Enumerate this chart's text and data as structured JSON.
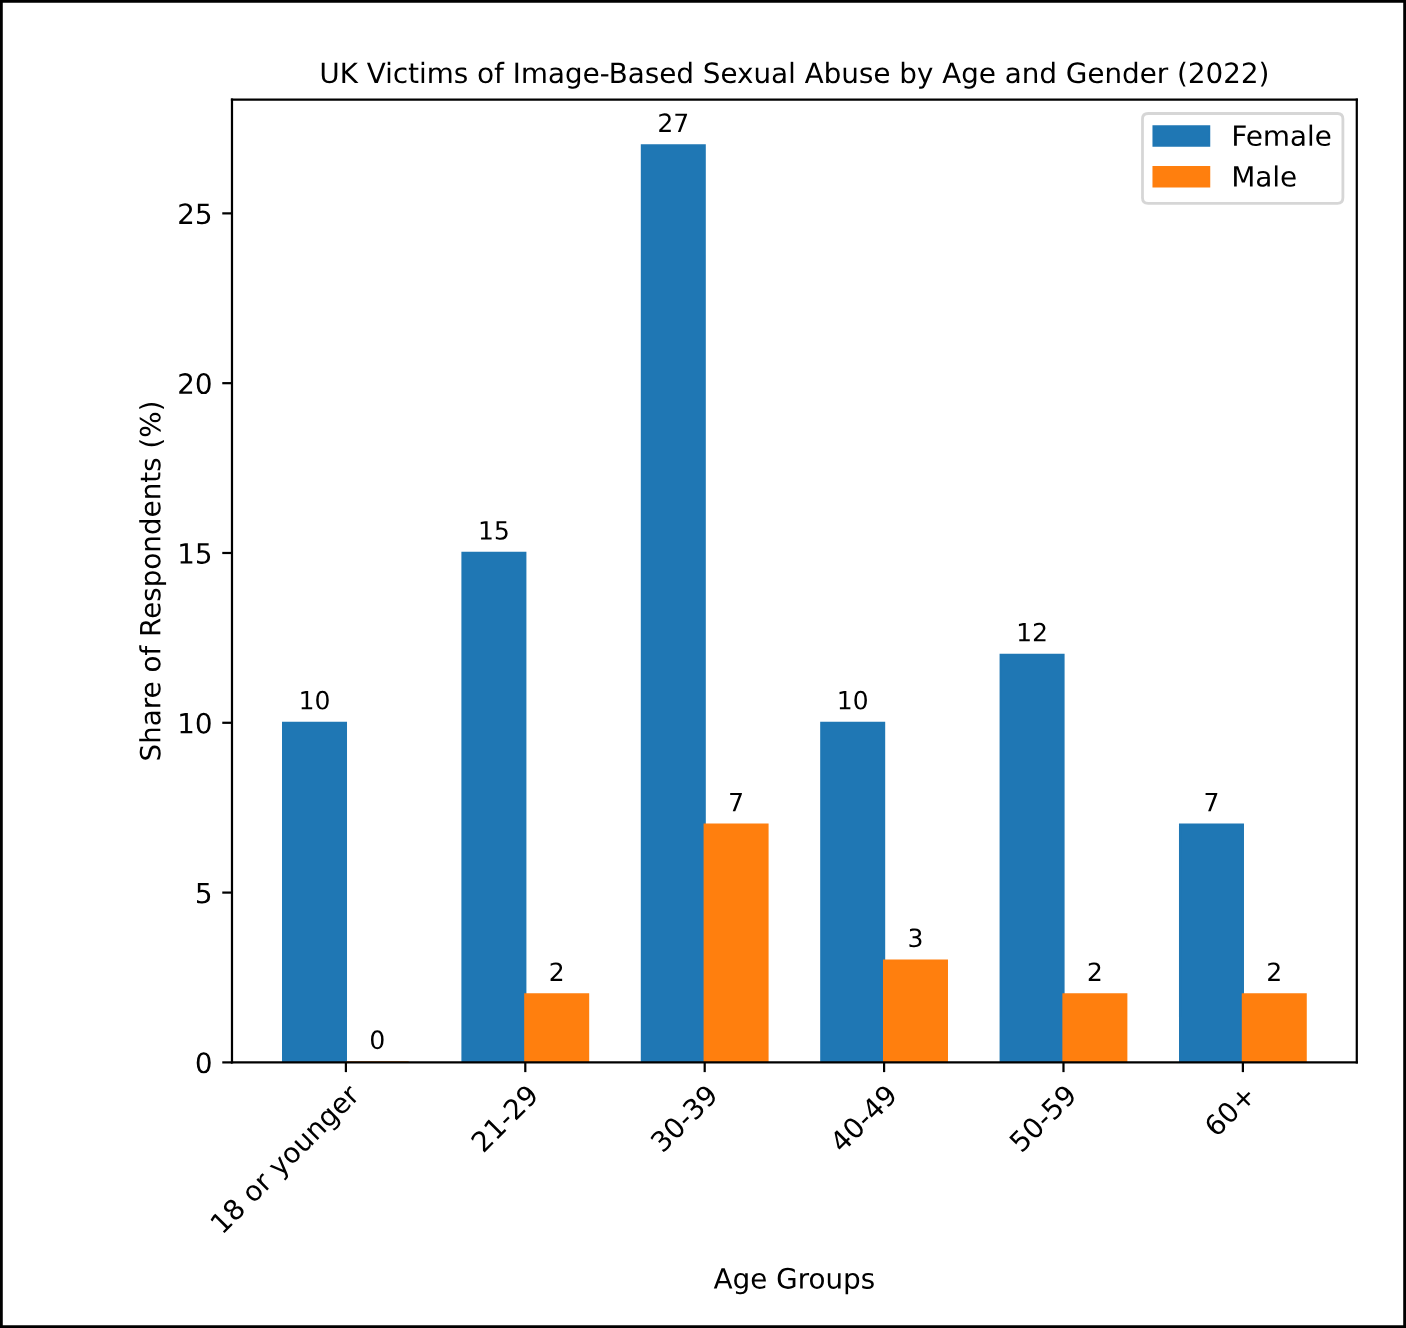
{
  "chart_data": {
    "type": "bar",
    "title": "UK Victims of Image-Based Sexual Abuse by Age and Gender (2022)",
    "xlabel": "Age Groups",
    "ylabel": "Share of Respondents (%)",
    "categories": [
      "18 or younger",
      "21-29",
      "30-39",
      "40-49",
      "50-59",
      "60+"
    ],
    "series": [
      {
        "name": "Female",
        "color": "#1f77b4",
        "values": [
          10,
          15,
          27,
          10,
          12,
          7
        ]
      },
      {
        "name": "Male",
        "color": "#ff7f0e",
        "values": [
          0,
          2,
          7,
          3,
          2,
          2
        ]
      }
    ],
    "ylim": [
      0,
      28.35
    ],
    "yticks": [
      0,
      5,
      10,
      15,
      20,
      25
    ],
    "data_labels": true,
    "legend": "top right",
    "grid": false
  }
}
